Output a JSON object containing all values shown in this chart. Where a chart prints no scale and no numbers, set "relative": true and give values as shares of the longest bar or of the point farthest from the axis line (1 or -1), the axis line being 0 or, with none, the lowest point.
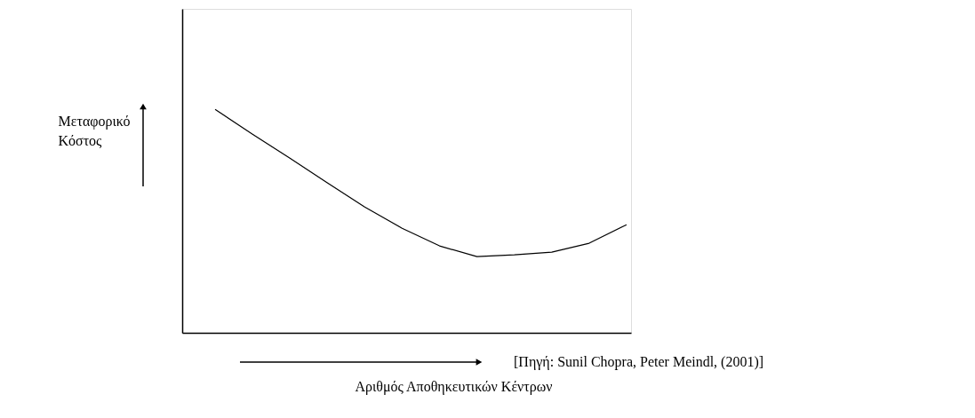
{
  "chart_data": {
    "type": "line",
    "relative": true,
    "xlabel": "Αριθμός Αποθηκευτικών Κέντρων",
    "ylabel": "Μεταφορικό Κόστος",
    "annotations": [
      "[Πηγή: Sunil Chopra, Peter Meindl, (2001)]"
    ],
    "categories": [
      null,
      null,
      null,
      null,
      null,
      null,
      null,
      null,
      null,
      null,
      null,
      null
    ],
    "series": [
      {
        "color": "#000000",
        "values": [
          1,
          0.889,
          0.782,
          0.671,
          0.563,
          0.468,
          0.389,
          0.341,
          0.349,
          0.361,
          0.401,
          0.484
        ]
      }
    ],
    "grid": false,
    "marker": "none",
    "line_style": "solid",
    "tick_labels": false
  }
}
